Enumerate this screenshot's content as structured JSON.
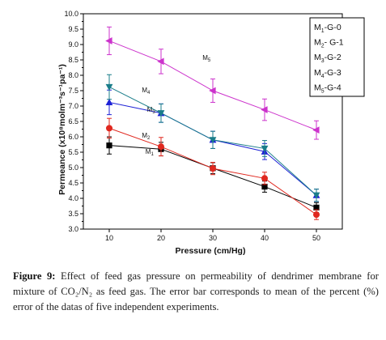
{
  "chart_data": {
    "type": "line",
    "x": [
      10,
      20,
      30,
      40,
      50
    ],
    "xlabel": "Pressure (cm/Hg)",
    "ylabel": "Permeance (x10⁸molm⁻³s⁻¹pa⁻¹)",
    "xlim": [
      5,
      55
    ],
    "ylim": [
      3.0,
      10.0
    ],
    "xticks": [
      10,
      20,
      30,
      40,
      50
    ],
    "yticks": [
      3.0,
      3.5,
      4.0,
      4.5,
      5.0,
      5.5,
      6.0,
      6.5,
      7.0,
      7.5,
      8.0,
      8.5,
      9.0,
      9.5,
      10.0
    ],
    "legend_position": "top-right",
    "series": [
      {
        "key": "M1",
        "label": "M1",
        "legend": "M1-G-0",
        "color": "#000000",
        "marker": "square",
        "values": [
          5.72,
          5.6,
          4.98,
          4.38,
          3.7
        ],
        "errors": [
          0.28,
          0.22,
          0.18,
          0.18,
          0.16
        ]
      },
      {
        "key": "M2",
        "label": "M2",
        "legend": "M2- G-1",
        "color": "#e0281f",
        "marker": "circle",
        "values": [
          6.28,
          5.68,
          4.97,
          4.65,
          3.47
        ],
        "errors": [
          0.32,
          0.3,
          0.2,
          0.2,
          0.16
        ]
      },
      {
        "key": "M3",
        "label": "M3",
        "legend": "M3-G-2",
        "color": "#1e22d6",
        "marker": "triangle-up",
        "values": [
          7.12,
          6.77,
          5.9,
          5.52,
          4.1
        ],
        "errors": [
          0.4,
          0.3,
          0.28,
          0.26,
          0.2
        ]
      },
      {
        "key": "M4",
        "label": "M4",
        "legend": "M4-G-3",
        "color": "#1a7d8a",
        "marker": "triangle-down",
        "values": [
          7.62,
          6.77,
          5.9,
          5.62,
          4.1
        ],
        "errors": [
          0.4,
          0.3,
          0.28,
          0.26,
          0.2
        ]
      },
      {
        "key": "M5",
        "label": "M5",
        "legend": "M5-G-4",
        "color": "#cc33cc",
        "marker": "triangle-left",
        "values": [
          9.12,
          8.45,
          7.5,
          6.88,
          6.22
        ],
        "errors": [
          0.45,
          0.4,
          0.38,
          0.35,
          0.3
        ]
      }
    ]
  },
  "caption": {
    "label": "Figure 9:",
    "text": "Effect of feed gas pressure on permeability of dendrimer membrane for mixture of CO₂/N₂ as feed gas. The error bar corresponds to mean of the percent (%) error of the datas of five independent experiments."
  }
}
